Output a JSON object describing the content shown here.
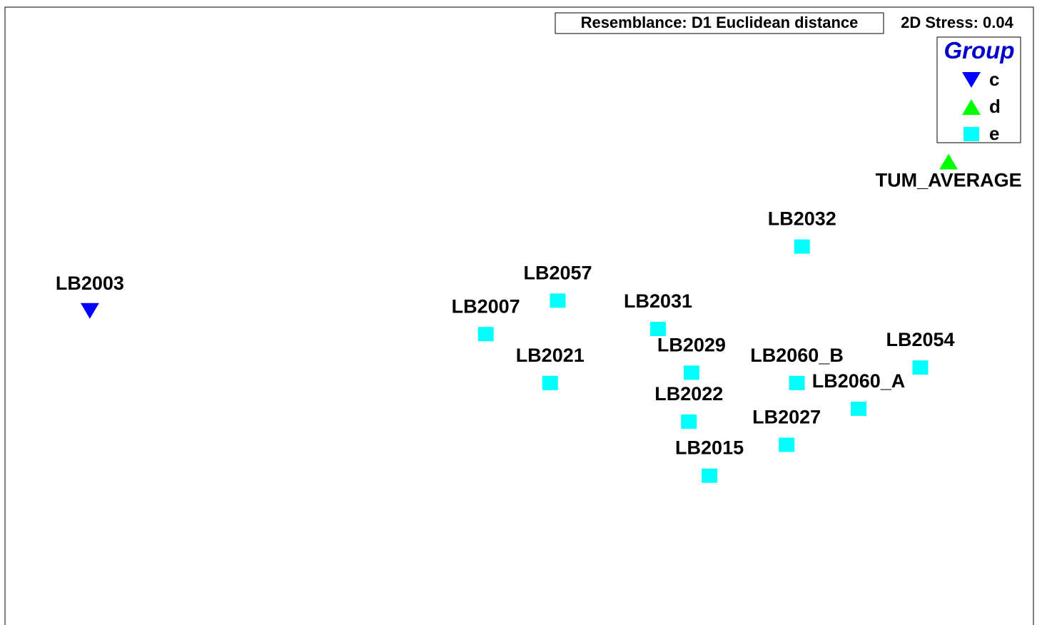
{
  "chart_data": {
    "type": "scatter",
    "resemblance": "Resemblance: D1 Euclidean distance",
    "stress": "2D Stress: 0.04",
    "legend_title": "Group",
    "legend_position": "upper right",
    "xlim": [
      -2,
      2
    ],
    "ylim": [
      -1.2,
      1.2
    ],
    "series": [
      {
        "name": "c",
        "color": "#0000ff",
        "marker": "triangle-down",
        "labels": [
          "LB2003"
        ],
        "x": [
          -1.67
        ],
        "y": [
          0.02
        ]
      },
      {
        "name": "d",
        "color": "#00ff00",
        "marker": "triangle-up",
        "labels": [
          "TUM_AVERAGE"
        ],
        "x": [
          1.67
        ],
        "y": [
          0.6
        ]
      },
      {
        "name": "e",
        "color": "#00ffff",
        "marker": "square",
        "labels": [
          "LB2032",
          "LB2057",
          "LB2007",
          "LB2031",
          "LB2021",
          "LB2029",
          "LB2060_B",
          "LB2054",
          "LB2060_A",
          "LB2022",
          "LB2027",
          "LB2015"
        ],
        "x": [
          1.1,
          0.15,
          -0.13,
          0.54,
          0.12,
          0.67,
          1.08,
          1.56,
          1.32,
          0.66,
          1.04,
          0.74
        ],
        "y": [
          0.27,
          0.06,
          -0.07,
          -0.05,
          -0.26,
          -0.22,
          -0.26,
          -0.2,
          -0.36,
          -0.41,
          -0.5,
          -0.62
        ]
      }
    ]
  }
}
